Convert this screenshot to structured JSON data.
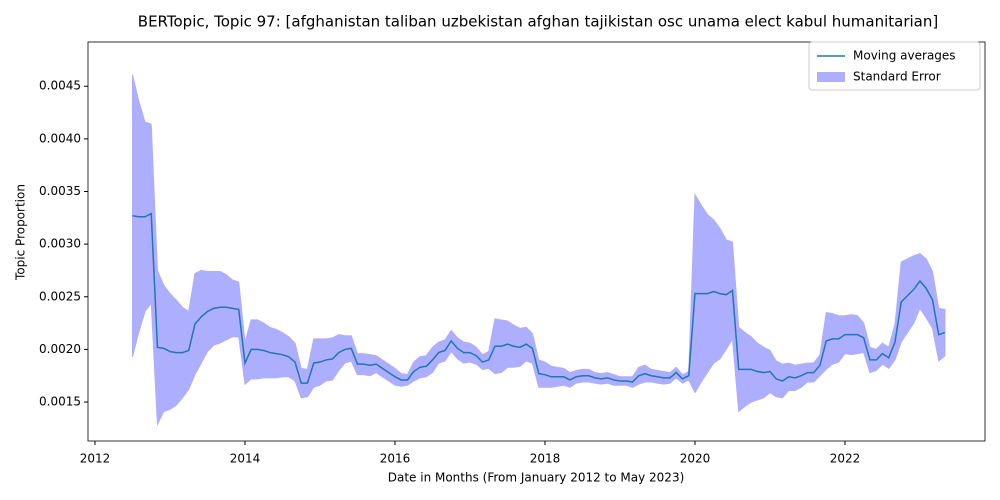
{
  "chart_data": {
    "type": "line",
    "title": "BERTopic, Topic 97: [afghanistan taliban uzbekistan afghan tajikistan osc unama elect kabul humanitarian]",
    "xlabel": "Date in Months (From January 2012 to May 2023)",
    "ylabel": "Topic Proportion",
    "x": [
      2012.5,
      2012.583,
      2012.667,
      2012.75,
      2012.833,
      2012.917,
      2013,
      2013.083,
      2013.167,
      2013.25,
      2013.333,
      2013.417,
      2013.5,
      2013.583,
      2013.667,
      2013.75,
      2013.833,
      2013.917,
      2014,
      2014.083,
      2014.167,
      2014.25,
      2014.333,
      2014.417,
      2014.5,
      2014.583,
      2014.667,
      2014.75,
      2014.833,
      2014.917,
      2015,
      2015.083,
      2015.167,
      2015.25,
      2015.333,
      2015.417,
      2015.5,
      2015.583,
      2015.667,
      2015.75,
      2015.833,
      2015.917,
      2016,
      2016.083,
      2016.167,
      2016.25,
      2016.333,
      2016.417,
      2016.5,
      2016.583,
      2016.667,
      2016.75,
      2016.833,
      2016.917,
      2017,
      2017.083,
      2017.167,
      2017.25,
      2017.333,
      2017.417,
      2017.5,
      2017.583,
      2017.667,
      2017.75,
      2017.833,
      2017.917,
      2018,
      2018.083,
      2018.167,
      2018.25,
      2018.333,
      2018.417,
      2018.5,
      2018.583,
      2018.667,
      2018.75,
      2018.833,
      2018.917,
      2019,
      2019.083,
      2019.167,
      2019.25,
      2019.333,
      2019.417,
      2019.5,
      2019.583,
      2019.667,
      2019.75,
      2019.833,
      2019.917,
      2020,
      2020.083,
      2020.167,
      2020.25,
      2020.333,
      2020.417,
      2020.5,
      2020.583,
      2020.667,
      2020.75,
      2020.833,
      2020.917,
      2021,
      2021.083,
      2021.167,
      2021.25,
      2021.333,
      2021.417,
      2021.5,
      2021.583,
      2021.667,
      2021.75,
      2021.833,
      2021.917,
      2022,
      2022.083,
      2022.167,
      2022.25,
      2022.333,
      2022.417,
      2022.5,
      2022.583,
      2022.667,
      2022.75,
      2022.833,
      2022.917,
      2023,
      2023.083,
      2023.167,
      2023.25,
      2023.333
    ],
    "series": [
      {
        "name": "Moving averages",
        "color": "#1f77b4",
        "values": [
          0.00327,
          0.00326,
          0.00326,
          0.00329,
          0.00202,
          0.00201,
          0.00198,
          0.00197,
          0.00197,
          0.00199,
          0.00224,
          0.00231,
          0.00236,
          0.00239,
          0.0024,
          0.0024,
          0.00239,
          0.00238,
          0.00187,
          0.002,
          0.002,
          0.00199,
          0.00197,
          0.00196,
          0.00195,
          0.00193,
          0.00188,
          0.00168,
          0.00168,
          0.00187,
          0.00188,
          0.0019,
          0.00191,
          0.00197,
          0.002,
          0.00201,
          0.00186,
          0.00186,
          0.00185,
          0.00186,
          0.00182,
          0.00178,
          0.00174,
          0.00171,
          0.00171,
          0.00179,
          0.00183,
          0.00184,
          0.0019,
          0.00197,
          0.00199,
          0.00208,
          0.00201,
          0.00197,
          0.00197,
          0.00194,
          0.00188,
          0.0019,
          0.00203,
          0.00203,
          0.00205,
          0.00203,
          0.00202,
          0.00205,
          0.00201,
          0.00177,
          0.00176,
          0.00174,
          0.00174,
          0.00174,
          0.00171,
          0.00174,
          0.00175,
          0.00175,
          0.00173,
          0.00172,
          0.00173,
          0.00171,
          0.0017,
          0.0017,
          0.00169,
          0.00175,
          0.00177,
          0.00175,
          0.00174,
          0.00173,
          0.00173,
          0.00178,
          0.00172,
          0.00175,
          0.00253,
          0.00253,
          0.00253,
          0.00255,
          0.00253,
          0.00252,
          0.00256,
          0.00181,
          0.00181,
          0.00181,
          0.00179,
          0.00178,
          0.00179,
          0.00172,
          0.0017,
          0.00174,
          0.00173,
          0.00175,
          0.00178,
          0.00178,
          0.00185,
          0.00208,
          0.0021,
          0.0021,
          0.00214,
          0.00214,
          0.00214,
          0.00211,
          0.0019,
          0.0019,
          0.00196,
          0.00192,
          0.00207,
          0.00245,
          0.00251,
          0.00257,
          0.00265,
          0.00258,
          0.00247,
          0.00214,
          0.00216
        ]
      },
      {
        "name": "Standard Error",
        "color": "#aeaefe",
        "values": [
          0.00134,
          0.0011,
          0.0009,
          0.00085,
          0.00073,
          0.0006,
          0.00055,
          0.0005,
          0.00043,
          0.00037,
          0.00048,
          0.00044,
          0.00038,
          0.00035,
          0.00034,
          0.00031,
          0.00027,
          0.00026,
          0.0002,
          0.00028,
          0.00028,
          0.00026,
          0.00024,
          0.00023,
          0.00021,
          0.00019,
          0.00018,
          0.00014,
          0.00013,
          0.00023,
          0.00022,
          0.0002,
          0.0002,
          0.00017,
          0.00013,
          0.00012,
          0.0001,
          0.0001,
          0.0001,
          8e-05,
          8e-05,
          8e-05,
          8e-05,
          6e-05,
          5e-05,
          9e-05,
          0.0001,
          0.0001,
          0.00012,
          0.0001,
          0.0001,
          0.0001,
          0.0001,
          0.0001,
          9e-05,
          8e-05,
          7e-05,
          8e-05,
          0.00026,
          0.00025,
          0.00022,
          0.0002,
          0.00018,
          0.00016,
          0.00014,
          0.00013,
          0.00012,
          0.0001,
          9e-05,
          8e-05,
          7e-05,
          6e-05,
          6e-05,
          6e-05,
          5e-05,
          5e-05,
          5e-05,
          5e-05,
          4e-05,
          4e-05,
          5e-05,
          8e-05,
          8e-05,
          6e-05,
          6e-05,
          6e-05,
          5e-05,
          5e-05,
          4e-05,
          4e-05,
          0.00094,
          0.00084,
          0.00075,
          0.00068,
          0.00062,
          0.00052,
          0.00046,
          0.0004,
          0.00035,
          0.00031,
          0.00027,
          0.00024,
          0.0002,
          0.00017,
          0.00016,
          0.00013,
          0.00012,
          0.00011,
          9e-05,
          9e-05,
          0.0001,
          0.00027,
          0.00024,
          0.00022,
          0.00018,
          0.00019,
          0.00018,
          0.00014,
          0.00012,
          0.0001,
          0.0001,
          0.0001,
          0.00017,
          0.00038,
          0.00035,
          0.00032,
          0.00026,
          0.00028,
          0.00027,
          0.00025,
          0.00022
        ]
      }
    ],
    "xlim": [
      2011.907,
      2023.867
    ],
    "ylim": [
      0.00113,
      0.00492
    ],
    "xticks": [
      2012,
      2014,
      2016,
      2018,
      2020,
      2022
    ],
    "yticks": [
      0.0015,
      {
        "value": 0.002,
        "label": "0.0020"
      },
      0.0025,
      {
        "value": 0.003,
        "label": "0.0030"
      },
      0.0035,
      {
        "value": 0.004,
        "label": "0.0040"
      },
      0.0045
    ],
    "grid": false,
    "legend": "upper right"
  }
}
